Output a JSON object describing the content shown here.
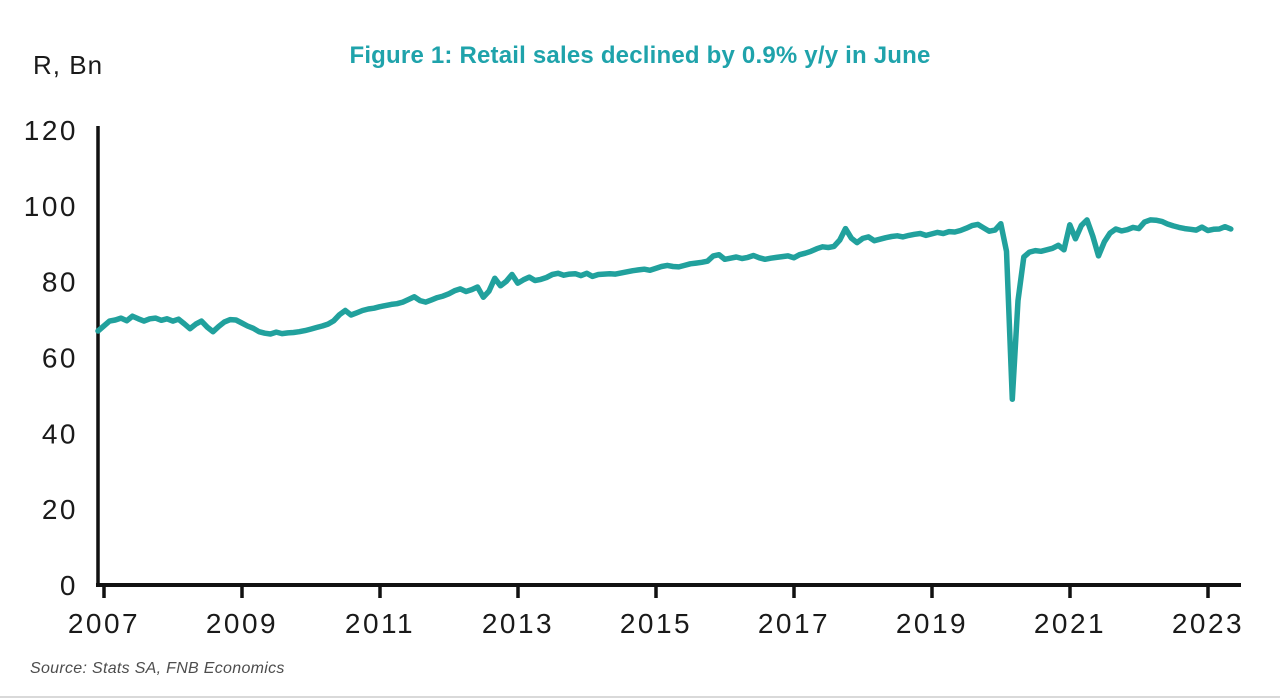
{
  "figure": {
    "title": "Figure 1: Retail sales declined by 0.9% y/y in June",
    "y_axis_unit_label": "R, Bn",
    "source": "Source: Stats SA, FNB Economics"
  },
  "colors": {
    "line_teal": "#21A19D",
    "title_teal": "#1FA3AB",
    "axis_black": "#111111",
    "tick_label_black": "#1a1a1a",
    "source_gray": "#4d4d4d",
    "divider_gray": "#d9d9d9"
  },
  "chart_data": {
    "type": "line",
    "title": "Figure 1: Retail sales declined by 0.9% y/y in June",
    "xlabel": "",
    "ylabel": "R, Bn",
    "x_start_year": 2007,
    "x_start_month": 1,
    "x_end_year": 2023,
    "x_end_month": 6,
    "frequency": "monthly",
    "x_tick_years": [
      2007,
      2009,
      2011,
      2013,
      2015,
      2017,
      2019,
      2021,
      2023
    ],
    "y_ticks": [
      0,
      20,
      40,
      60,
      80,
      100,
      120
    ],
    "ylim": [
      0,
      120
    ],
    "grid": false,
    "legend": "none",
    "series": [
      {
        "name": "Retail sales, R billions (real, seasonally adjusted)",
        "values": [
          67.0,
          68.3,
          69.6,
          69.9,
          70.4,
          69.7,
          70.9,
          70.2,
          69.6,
          70.2,
          70.4,
          69.8,
          70.2,
          69.6,
          70.1,
          68.9,
          67.6,
          68.8,
          69.6,
          68.0,
          66.8,
          68.2,
          69.4,
          70.0,
          69.9,
          69.1,
          68.3,
          67.7,
          66.8,
          66.4,
          66.2,
          66.7,
          66.3,
          66.5,
          66.6,
          66.8,
          67.1,
          67.5,
          67.9,
          68.3,
          68.8,
          69.7,
          71.3,
          72.4,
          71.2,
          71.8,
          72.4,
          72.8,
          73.0,
          73.4,
          73.7,
          74.0,
          74.2,
          74.6,
          75.3,
          76.0,
          75.0,
          74.6,
          75.2,
          75.8,
          76.2,
          76.8,
          77.6,
          78.1,
          77.4,
          77.9,
          78.6,
          75.9,
          77.5,
          80.9,
          78.9,
          80.1,
          81.9,
          79.6,
          80.5,
          81.2,
          80.3,
          80.6,
          81.1,
          81.9,
          82.2,
          81.7,
          82.0,
          82.1,
          81.6,
          82.2,
          81.4,
          81.9,
          82.0,
          82.1,
          82.0,
          82.3,
          82.6,
          82.9,
          83.1,
          83.3,
          83.0,
          83.5,
          84.0,
          84.3,
          84.0,
          83.9,
          84.3,
          84.7,
          84.9,
          85.1,
          85.4,
          86.8,
          87.1,
          85.9,
          86.2,
          86.5,
          86.1,
          86.4,
          86.9,
          86.3,
          85.9,
          86.2,
          86.4,
          86.6,
          86.8,
          86.3,
          87.1,
          87.5,
          88.0,
          88.7,
          89.2,
          89.0,
          89.3,
          91.0,
          94.0,
          91.5,
          90.3,
          91.4,
          91.8,
          90.8,
          91.2,
          91.6,
          91.9,
          92.1,
          91.8,
          92.2,
          92.5,
          92.7,
          92.2,
          92.6,
          93.0,
          92.7,
          93.2,
          93.1,
          93.5,
          94.1,
          94.8,
          95.1,
          94.2,
          93.3,
          93.6,
          95.3,
          88.0,
          49.0,
          75.0,
          86.5,
          87.8,
          88.2,
          88.0,
          88.4,
          88.8,
          89.6,
          88.4,
          95.0,
          91.3,
          94.8,
          96.3,
          92.0,
          86.8,
          90.5,
          92.8,
          93.9,
          93.4,
          93.7,
          94.3,
          94.0,
          95.7,
          96.3,
          96.2,
          95.9,
          95.2,
          94.7,
          94.3,
          94.0,
          93.8,
          93.6,
          94.4,
          93.5,
          93.8,
          93.9,
          94.5,
          93.9
        ]
      }
    ]
  }
}
